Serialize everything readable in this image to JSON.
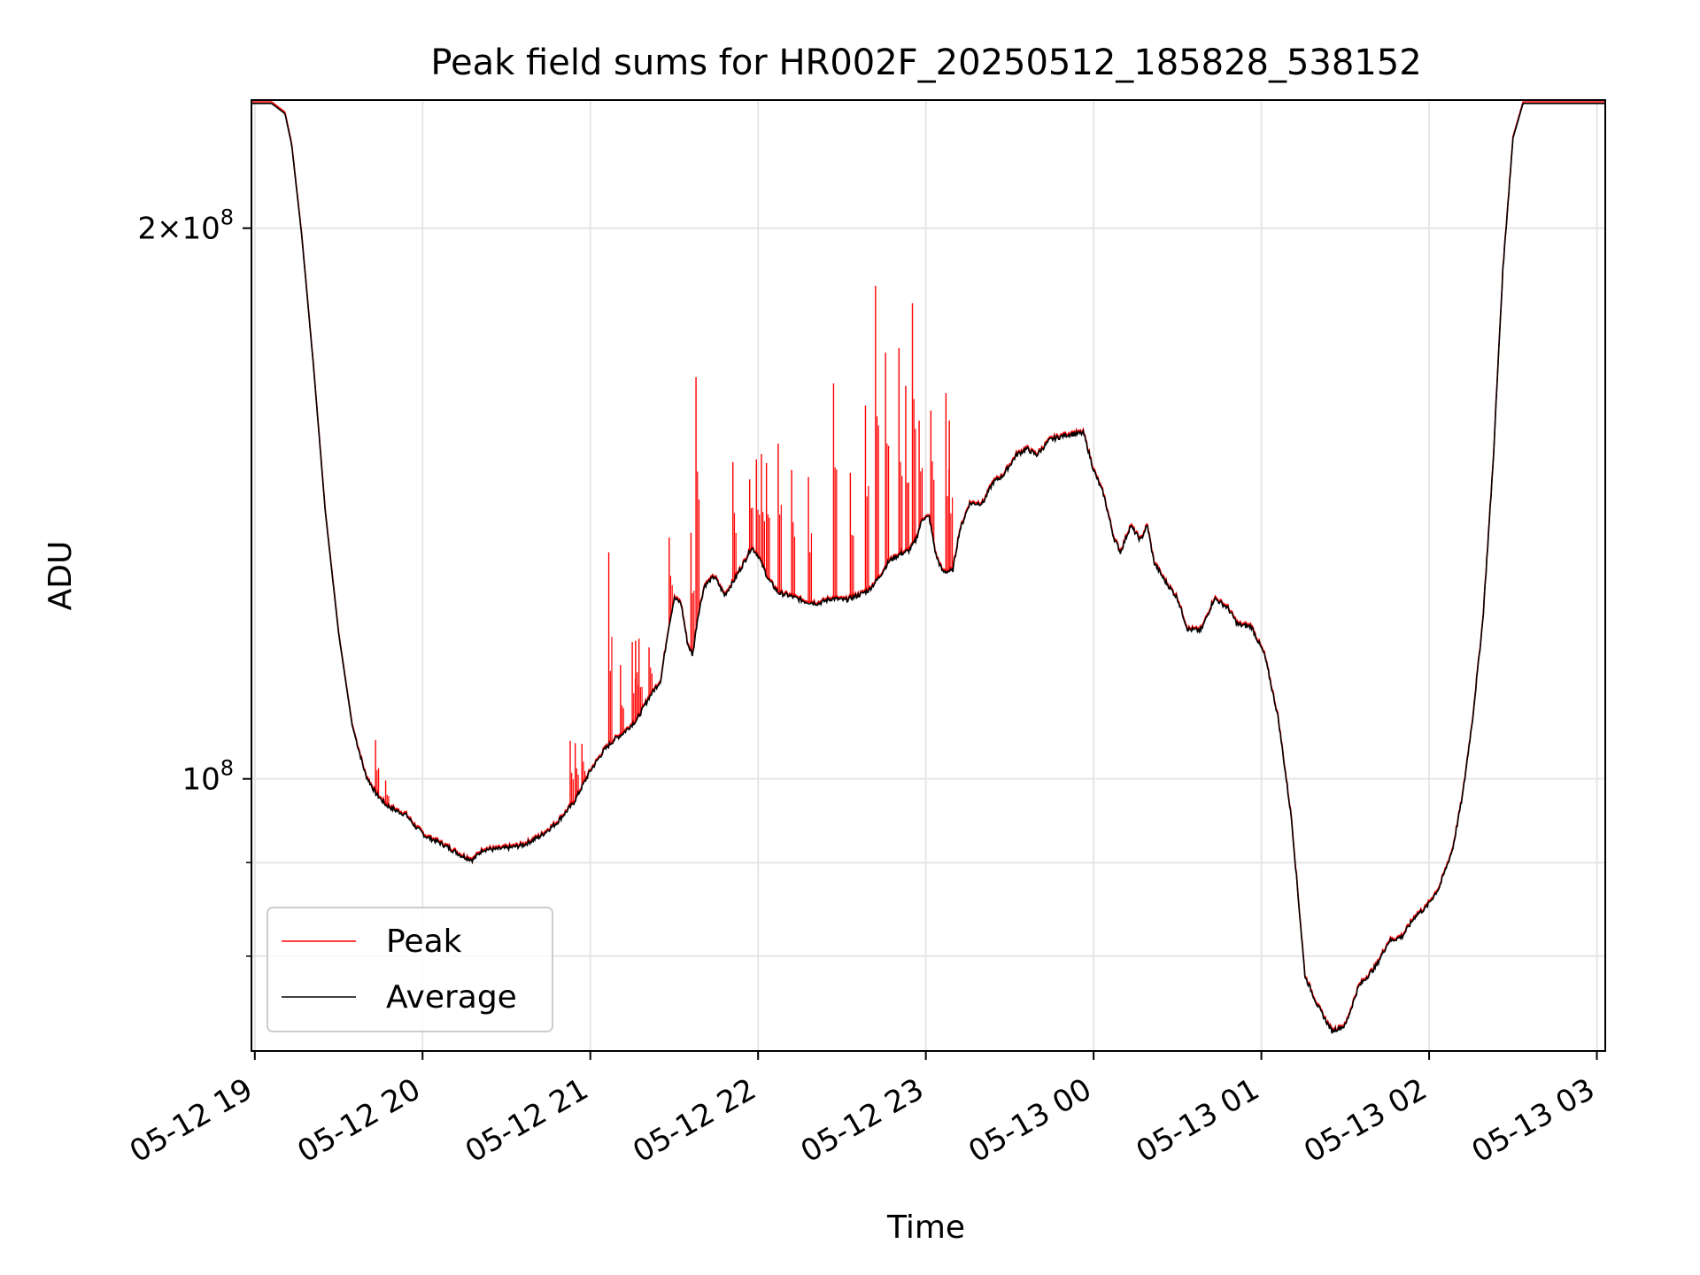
{
  "chart_data": {
    "type": "line",
    "title": "Peak field sums for HR002F_20250512_185828_538152",
    "xlabel": "Time",
    "ylabel": "ADU",
    "yscale": "log",
    "ylim": [
      71000000,
      235000000
    ],
    "xlim_hours": [
      18.98,
      27.05
    ],
    "grid": true,
    "legend_position": "lower-left",
    "x_ticks": [
      {
        "hour": 19,
        "label": "05-12 19"
      },
      {
        "hour": 20,
        "label": "05-12 20"
      },
      {
        "hour": 21,
        "label": "05-12 21"
      },
      {
        "hour": 22,
        "label": "05-12 22"
      },
      {
        "hour": 23,
        "label": "05-12 23"
      },
      {
        "hour": 24,
        "label": "05-13 00"
      },
      {
        "hour": 25,
        "label": "05-13 01"
      },
      {
        "hour": 26,
        "label": "05-13 02"
      },
      {
        "hour": 27,
        "label": "05-13 03"
      }
    ],
    "y_major_ticks": [
      {
        "value": 100000000,
        "base": "10",
        "exp": "8"
      },
      {
        "value": 200000000,
        "mantissa": "2",
        "base": "10",
        "exp": "8"
      }
    ],
    "y_minor_ticks": [
      80000000,
      90000000
    ],
    "series": [
      {
        "name": "Peak",
        "color": "#ff0000",
        "spikes": [
          [
            19.72,
            105000000
          ],
          [
            19.78,
            99800000
          ],
          [
            20.88,
            104900000
          ],
          [
            20.91,
            104600000
          ],
          [
            20.95,
            104500000
          ],
          [
            21.11,
            133000000
          ],
          [
            21.18,
            115400000
          ],
          [
            21.25,
            118800000
          ],
          [
            21.27,
            119000000
          ],
          [
            21.29,
            119300000
          ],
          [
            21.35,
            118000000
          ],
          [
            21.47,
            135500000
          ],
          [
            21.6,
            136300000
          ],
          [
            21.63,
            165800000
          ],
          [
            21.85,
            149000000
          ],
          [
            21.95,
            145800000
          ],
          [
            21.99,
            149500000
          ],
          [
            22.02,
            150500000
          ],
          [
            22.05,
            148800000
          ],
          [
            22.12,
            152500000
          ],
          [
            22.2,
            147500000
          ],
          [
            22.3,
            146200000
          ],
          [
            22.45,
            164500000
          ],
          [
            22.55,
            147000000
          ],
          [
            22.64,
            160000000
          ],
          [
            22.7,
            186000000
          ],
          [
            22.76,
            171000000
          ],
          [
            22.84,
            172000000
          ],
          [
            22.88,
            164000000
          ],
          [
            22.92,
            182000000
          ],
          [
            22.96,
            157000000
          ],
          [
            23.03,
            159000000
          ],
          [
            23.12,
            162500000
          ],
          [
            23.14,
            157000000
          ]
        ]
      },
      {
        "name": "Average",
        "color": "#000000",
        "points": [
          [
            18.98,
            234000000
          ],
          [
            19.1,
            234000000
          ],
          [
            19.18,
            231000000
          ],
          [
            19.22,
            222000000
          ],
          [
            19.28,
            198000000
          ],
          [
            19.35,
            168000000
          ],
          [
            19.42,
            140000000
          ],
          [
            19.5,
            120000000
          ],
          [
            19.58,
            107000000
          ],
          [
            19.66,
            100500000
          ],
          [
            19.72,
            98200000
          ],
          [
            19.78,
            96800000
          ],
          [
            19.84,
            96100000
          ],
          [
            19.9,
            95600000
          ],
          [
            19.96,
            94100000
          ],
          [
            20.02,
            93000000
          ],
          [
            20.1,
            92300000
          ],
          [
            20.18,
            91400000
          ],
          [
            20.24,
            90700000
          ],
          [
            20.3,
            90300000
          ],
          [
            20.36,
            91500000
          ],
          [
            20.44,
            91500000
          ],
          [
            20.52,
            91700000
          ],
          [
            20.6,
            92000000
          ],
          [
            20.7,
            93000000
          ],
          [
            20.8,
            94600000
          ],
          [
            20.9,
            97000000
          ],
          [
            21.0,
            101000000
          ],
          [
            21.08,
            103600000
          ],
          [
            21.14,
            105000000
          ],
          [
            21.2,
            106000000
          ],
          [
            21.28,
            107800000
          ],
          [
            21.35,
            110800000
          ],
          [
            21.42,
            113200000
          ],
          [
            21.46,
            120000000
          ],
          [
            21.5,
            125500000
          ],
          [
            21.54,
            124800000
          ],
          [
            21.58,
            118500000
          ],
          [
            21.61,
            116800000
          ],
          [
            21.64,
            122500000
          ],
          [
            21.68,
            127500000
          ],
          [
            21.74,
            129000000
          ],
          [
            21.8,
            126000000
          ],
          [
            21.86,
            128500000
          ],
          [
            21.92,
            131500000
          ],
          [
            21.96,
            133800000
          ],
          [
            22.0,
            132500000
          ],
          [
            22.06,
            128600000
          ],
          [
            22.12,
            126400000
          ],
          [
            22.2,
            125800000
          ],
          [
            22.28,
            125000000
          ],
          [
            22.36,
            124700000
          ],
          [
            22.44,
            125500000
          ],
          [
            22.52,
            125200000
          ],
          [
            22.6,
            126000000
          ],
          [
            22.66,
            126800000
          ],
          [
            22.72,
            128800000
          ],
          [
            22.78,
            131500000
          ],
          [
            22.84,
            132600000
          ],
          [
            22.9,
            133300000
          ],
          [
            22.94,
            135000000
          ],
          [
            22.98,
            138800000
          ],
          [
            23.02,
            139000000
          ],
          [
            23.06,
            132500000
          ],
          [
            23.1,
            129800000
          ],
          [
            23.16,
            129900000
          ],
          [
            23.2,
            136500000
          ],
          [
            23.26,
            141400000
          ],
          [
            23.34,
            141500000
          ],
          [
            23.4,
            145200000
          ],
          [
            23.46,
            146500000
          ],
          [
            23.54,
            150300000
          ],
          [
            23.6,
            151500000
          ],
          [
            23.66,
            150300000
          ],
          [
            23.74,
            153200000
          ],
          [
            23.84,
            154200000
          ],
          [
            23.94,
            154500000
          ],
          [
            24.0,
            147500000
          ],
          [
            24.06,
            143000000
          ],
          [
            24.12,
            135500000
          ],
          [
            24.16,
            133000000
          ],
          [
            24.22,
            137500000
          ],
          [
            24.28,
            135000000
          ],
          [
            24.32,
            137600000
          ],
          [
            24.36,
            131300000
          ],
          [
            24.42,
            128500000
          ],
          [
            24.5,
            125500000
          ],
          [
            24.56,
            120700000
          ],
          [
            24.64,
            120500000
          ],
          [
            24.72,
            125500000
          ],
          [
            24.8,
            124000000
          ],
          [
            24.86,
            121400000
          ],
          [
            24.94,
            121100000
          ],
          [
            25.02,
            116800000
          ],
          [
            25.1,
            108000000
          ],
          [
            25.18,
            95000000
          ],
          [
            25.26,
            78000000
          ],
          [
            25.34,
            75000000
          ],
          [
            25.42,
            72800000
          ],
          [
            25.5,
            73300000
          ],
          [
            25.58,
            77000000
          ],
          [
            25.68,
            78900000
          ],
          [
            25.76,
            81500000
          ],
          [
            25.84,
            82000000
          ],
          [
            25.92,
            84200000
          ],
          [
            25.98,
            85000000
          ],
          [
            26.06,
            87200000
          ],
          [
            26.14,
            91500000
          ],
          [
            26.2,
            98000000
          ],
          [
            26.26,
            108000000
          ],
          [
            26.32,
            122000000
          ],
          [
            26.38,
            148000000
          ],
          [
            26.44,
            190000000
          ],
          [
            26.5,
            224000000
          ],
          [
            26.56,
            234000000
          ],
          [
            27.05,
            234000000
          ]
        ]
      }
    ]
  }
}
